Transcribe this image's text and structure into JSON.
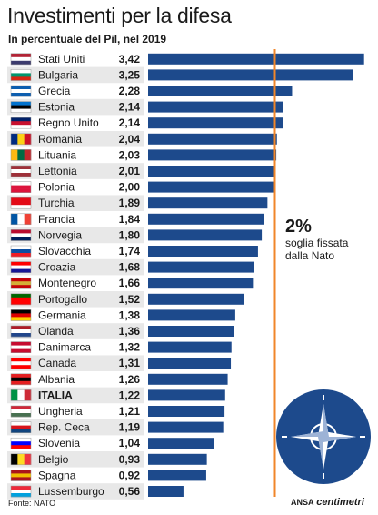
{
  "header": {
    "title": "Investimenti per la difesa",
    "subtitle": "In percentuale del Pil, nel 2019"
  },
  "footer": {
    "source": "Fonte: NATO",
    "brand_ansa": "ANSA",
    "brand_centimetri": "centimetri"
  },
  "threshold": {
    "value_label": "2%",
    "label": "soglia fissata dalla Nato",
    "color": "#f0862a"
  },
  "colors": {
    "bar": "#1d4a8c",
    "row_alt": "#e8e8e8",
    "nato_circle": "#1d4a8c"
  },
  "icons": {
    "logo": "nato-compass-icon"
  },
  "chart_data": {
    "type": "bar",
    "orientation": "horizontal",
    "title": "Investimenti per la difesa",
    "subtitle": "In percentuale del Pil, nel 2019",
    "categories": [
      "Stati Uniti",
      "Bulgaria",
      "Grecia",
      "Estonia",
      "Regno Unito",
      "Romania",
      "Lituania",
      "Lettonia",
      "Polonia",
      "Turchia",
      "Francia",
      "Norvegia",
      "Slovacchia",
      "Croazia",
      "Montenegro",
      "Portogallo",
      "Germania",
      "Olanda",
      "Danimarca",
      "Canada",
      "Albania",
      "ITALIA",
      "Ungheria",
      "Rep. Ceca",
      "Slovenia",
      "Belgio",
      "Spagna",
      "Lussemburgo"
    ],
    "value_labels": [
      "3,42",
      "3,25",
      "2,28",
      "2,14",
      "2,14",
      "2,04",
      "2,03",
      "2,01",
      "2,00",
      "1,89",
      "1,84",
      "1,80",
      "1,74",
      "1,68",
      "1,66",
      "1,52",
      "1,38",
      "1,36",
      "1,32",
      "1,31",
      "1,26",
      "1,22",
      "1,21",
      "1,19",
      "1,04",
      "0,93",
      "0,92",
      "0,56"
    ],
    "values": [
      3.42,
      3.25,
      2.28,
      2.14,
      2.14,
      2.04,
      2.03,
      2.01,
      2.0,
      1.89,
      1.84,
      1.8,
      1.74,
      1.68,
      1.66,
      1.52,
      1.38,
      1.36,
      1.32,
      1.31,
      1.26,
      1.22,
      1.21,
      1.19,
      1.04,
      0.93,
      0.92,
      0.56
    ],
    "highlight": "ITALIA",
    "threshold": 2.0,
    "xlim": [
      0,
      3.5
    ],
    "grid": false
  }
}
